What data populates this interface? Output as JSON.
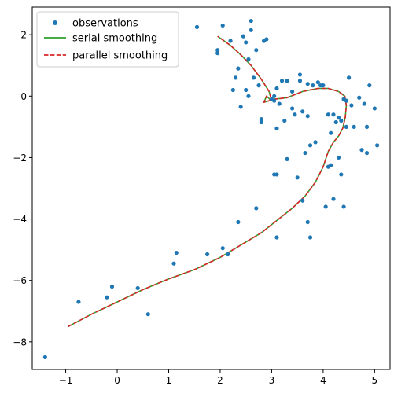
{
  "chart_data": {
    "type": "scatter",
    "title": "",
    "xlabel": "",
    "ylabel": "",
    "xlim": [
      -1.65,
      5.3
    ],
    "ylim": [
      -8.9,
      2.9
    ],
    "xticks": [
      -1,
      0,
      1,
      2,
      3,
      4,
      5
    ],
    "yticks": [
      -8,
      -6,
      -4,
      -2,
      0,
      2
    ],
    "xtick_labels": [
      "−1",
      "0",
      "1",
      "2",
      "3",
      "4",
      "5"
    ],
    "ytick_labels": [
      "−8",
      "−6",
      "−4",
      "−2",
      "0",
      "2"
    ],
    "grid": false,
    "legend_position": "top-left",
    "colors": {
      "observations": "#1f77b4",
      "serial": "#2ca02c",
      "parallel": "#d62728"
    },
    "series": [
      {
        "name": "observations",
        "style": "points",
        "x": [
          -1.4,
          -0.75,
          -0.2,
          -0.1,
          0.4,
          0.6,
          1.1,
          1.15,
          1.75,
          2.05,
          2.15,
          1.55,
          1.95,
          1.95,
          2.05,
          2.2,
          2.25,
          2.3,
          2.35,
          2.4,
          2.45,
          2.5,
          2.5,
          2.55,
          2.55,
          2.6,
          2.6,
          2.65,
          2.7,
          2.75,
          2.8,
          2.8,
          2.85,
          2.9,
          3.0,
          3.05,
          3.05,
          3.1,
          3.1,
          3.1,
          3.15,
          3.2,
          3.25,
          3.3,
          3.4,
          3.4,
          3.45,
          3.5,
          3.55,
          3.55,
          3.6,
          3.6,
          3.65,
          3.7,
          3.7,
          3.7,
          3.75,
          3.75,
          3.8,
          3.85,
          3.9,
          3.95,
          4.0,
          4.05,
          4.1,
          4.1,
          4.15,
          4.2,
          4.2,
          4.25,
          4.3,
          4.3,
          4.35,
          4.4,
          4.4,
          4.45,
          4.45,
          4.5,
          4.55,
          4.6,
          4.7,
          4.75,
          4.8,
          4.85,
          4.85,
          4.9,
          5.0,
          5.05,
          2.7,
          2.35,
          3.05,
          3.1,
          3.3,
          4.15,
          4.35
        ],
        "y": [
          -8.5,
          -6.7,
          -6.55,
          -6.2,
          -6.25,
          -7.1,
          -5.45,
          -5.1,
          -5.15,
          -4.95,
          -5.15,
          2.25,
          1.4,
          1.5,
          2.3,
          1.8,
          0.2,
          0.6,
          0.9,
          -0.35,
          1.95,
          1.75,
          0.2,
          0.0,
          1.2,
          2.15,
          2.45,
          0.6,
          1.5,
          0.35,
          -0.75,
          -0.85,
          1.8,
          1.85,
          -0.1,
          -2.55,
          -0.15,
          -4.6,
          0.25,
          -1.05,
          -0.25,
          0.5,
          -0.8,
          0.5,
          -0.4,
          0.15,
          -0.6,
          -2.65,
          0.7,
          0.5,
          -0.5,
          -3.4,
          -1.85,
          -4.1,
          0.4,
          -0.65,
          -1.6,
          -4.6,
          0.35,
          -1.5,
          0.45,
          0.35,
          0.35,
          -3.6,
          -2.3,
          -0.6,
          -2.25,
          -3.35,
          -0.6,
          -0.85,
          -0.7,
          -2.0,
          -2.55,
          -3.6,
          -0.1,
          -0.15,
          -1.0,
          0.6,
          -0.3,
          -1.0,
          -0.05,
          -1.75,
          -0.25,
          -1.85,
          -1.0,
          0.35,
          -0.4,
          -1.6,
          -3.65,
          -4.1,
          0.0,
          -2.55,
          -2.05,
          -1.2,
          -0.8
        ]
      },
      {
        "name": "serial smoothing",
        "style": "solid-line",
        "x": [
          -0.95,
          -0.5,
          0.0,
          0.5,
          1.0,
          1.5,
          2.0,
          2.4,
          2.8,
          3.1,
          3.4,
          3.65,
          3.85,
          4.0,
          4.1,
          4.2,
          4.3,
          4.38,
          4.43,
          4.45,
          4.42,
          4.3,
          4.1,
          3.9,
          3.6,
          3.3,
          3.05,
          2.85,
          2.9,
          3.0,
          2.95,
          2.8,
          2.6,
          2.4,
          2.2,
          1.95
        ],
        "y": [
          -7.5,
          -7.1,
          -6.7,
          -6.3,
          -5.95,
          -5.65,
          -5.25,
          -4.85,
          -4.45,
          -4.05,
          -3.65,
          -3.25,
          -2.8,
          -2.3,
          -1.8,
          -1.5,
          -1.3,
          -1.05,
          -0.7,
          -0.3,
          0.0,
          0.15,
          0.25,
          0.25,
          0.15,
          -0.05,
          -0.1,
          -0.2,
          0.0,
          -0.15,
          0.15,
          0.55,
          1.0,
          1.35,
          1.65,
          1.95
        ]
      },
      {
        "name": "parallel smoothing",
        "style": "dashed-line",
        "x": [
          -0.95,
          -0.5,
          0.0,
          0.5,
          1.0,
          1.5,
          2.0,
          2.4,
          2.8,
          3.1,
          3.4,
          3.65,
          3.85,
          4.0,
          4.1,
          4.2,
          4.3,
          4.38,
          4.43,
          4.45,
          4.42,
          4.3,
          4.1,
          3.9,
          3.6,
          3.3,
          3.05,
          2.85,
          2.9,
          3.0,
          2.95,
          2.8,
          2.6,
          2.4,
          2.2,
          1.95
        ],
        "y": [
          -7.5,
          -7.1,
          -6.7,
          -6.3,
          -5.95,
          -5.65,
          -5.25,
          -4.85,
          -4.45,
          -4.05,
          -3.65,
          -3.25,
          -2.8,
          -2.3,
          -1.8,
          -1.5,
          -1.3,
          -1.05,
          -0.7,
          -0.3,
          0.0,
          0.15,
          0.25,
          0.25,
          0.15,
          -0.05,
          -0.1,
          -0.2,
          0.0,
          -0.15,
          0.15,
          0.55,
          1.0,
          1.35,
          1.65,
          1.95
        ]
      }
    ]
  }
}
